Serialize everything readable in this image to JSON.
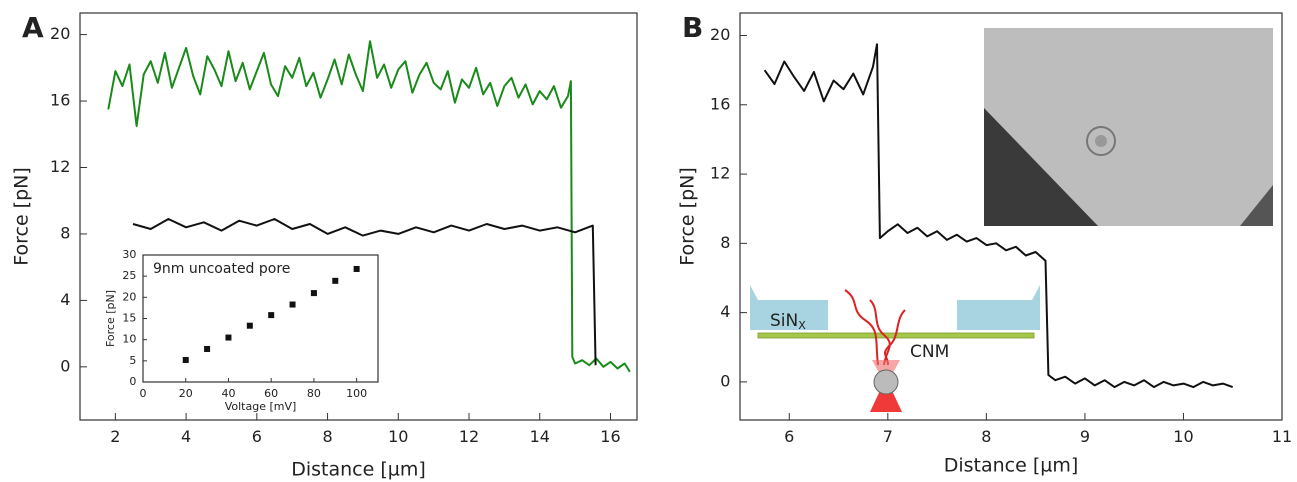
{
  "chart_data": [
    {
      "type": "line",
      "panel_label": "A",
      "x_label": "Distance [µm]",
      "y_label": "Force [pN]",
      "xlim": [
        1,
        16.75
      ],
      "ylim": [
        -3.2,
        21.3
      ],
      "xticks": [
        2,
        4,
        6,
        8,
        10,
        12,
        14,
        16
      ],
      "yticks": [
        0,
        4,
        8,
        12,
        16,
        20
      ],
      "series": [
        {
          "color": "#1a8a1a",
          "x": [
            1.8,
            2.0,
            2.2,
            2.4,
            2.6,
            2.8,
            3.0,
            3.2,
            3.4,
            3.6,
            3.8,
            4.0,
            4.2,
            4.4,
            4.6,
            4.8,
            5.0,
            5.2,
            5.4,
            5.6,
            5.8,
            6.0,
            6.2,
            6.4,
            6.6,
            6.8,
            7.0,
            7.2,
            7.4,
            7.6,
            7.8,
            8.0,
            8.2,
            8.4,
            8.6,
            8.8,
            9.0,
            9.2,
            9.4,
            9.6,
            9.8,
            10.0,
            10.2,
            10.4,
            10.6,
            10.8,
            11.0,
            11.2,
            11.4,
            11.6,
            11.8,
            12.0,
            12.2,
            12.4,
            12.6,
            12.8,
            13.0,
            13.2,
            13.4,
            13.6,
            13.8,
            14.0,
            14.2,
            14.4,
            14.6,
            14.8,
            14.88,
            14.92,
            15.0,
            15.2,
            15.4,
            15.6,
            15.8,
            16.0,
            16.2,
            16.4,
            16.55
          ],
          "values": [
            15.5,
            17.8,
            16.9,
            18.2,
            14.5,
            17.6,
            18.4,
            17.1,
            18.9,
            16.8,
            18.0,
            19.2,
            17.5,
            16.4,
            18.7,
            17.9,
            16.9,
            19.0,
            17.2,
            18.3,
            16.7,
            17.8,
            18.9,
            17.0,
            16.3,
            18.1,
            17.4,
            18.6,
            16.9,
            17.7,
            16.2,
            17.3,
            18.5,
            17.0,
            18.8,
            17.6,
            16.6,
            19.6,
            17.4,
            18.2,
            16.8,
            17.9,
            18.4,
            16.5,
            17.6,
            18.3,
            17.1,
            16.7,
            17.8,
            15.9,
            17.3,
            16.8,
            18.0,
            16.4,
            17.1,
            15.7,
            16.9,
            17.4,
            16.2,
            17.0,
            15.8,
            16.6,
            16.1,
            16.9,
            15.6,
            16.3,
            17.2,
            0.6,
            0.2,
            0.4,
            0.1,
            0.5,
            0.0,
            0.3,
            -0.1,
            0.2,
            -0.3
          ]
        },
        {
          "color": "#111111",
          "x": [
            2.5,
            3.0,
            3.5,
            4.0,
            4.5,
            5.0,
            5.5,
            6.0,
            6.5,
            7.0,
            7.5,
            8.0,
            8.5,
            9.0,
            9.5,
            10.0,
            10.5,
            11.0,
            11.5,
            12.0,
            12.5,
            13.0,
            13.5,
            14.0,
            14.5,
            15.0,
            15.5,
            15.58
          ],
          "values": [
            8.6,
            8.3,
            8.9,
            8.4,
            8.7,
            8.2,
            8.8,
            8.5,
            8.9,
            8.3,
            8.6,
            8.0,
            8.4,
            7.9,
            8.2,
            8.0,
            8.4,
            8.1,
            8.5,
            8.2,
            8.6,
            8.3,
            8.5,
            8.2,
            8.4,
            8.1,
            8.5,
            0.1
          ]
        }
      ]
    },
    {
      "type": "scatter",
      "annotation": "9nm uncoated pore",
      "x_label": "Voltage [mV]",
      "y_label": "Force [pN]",
      "xlim": [
        0,
        110
      ],
      "ylim": [
        0,
        30
      ],
      "xticks": [
        0,
        20,
        40,
        60,
        80,
        100
      ],
      "yticks": [
        0,
        5,
        10,
        15,
        20,
        25,
        30
      ],
      "color": "#111111",
      "x": [
        20,
        30,
        40,
        50,
        60,
        70,
        80,
        90,
        100
      ],
      "values": [
        5.2,
        7.8,
        10.5,
        13.3,
        15.8,
        18.3,
        21.0,
        23.9,
        26.7
      ]
    },
    {
      "type": "line",
      "panel_label": "B",
      "x_label": "Distance [µm]",
      "y_label": "Force [pN]",
      "xlim": [
        5.5,
        11
      ],
      "ylim": [
        -2.2,
        21.3
      ],
      "xticks": [
        6,
        7,
        8,
        9,
        10,
        11
      ],
      "yticks": [
        0,
        4,
        8,
        12,
        16,
        20
      ],
      "series": [
        {
          "color": "#111111",
          "x": [
            5.75,
            5.85,
            5.95,
            6.05,
            6.15,
            6.25,
            6.35,
            6.45,
            6.55,
            6.65,
            6.75,
            6.85,
            6.89,
            6.92,
            7.0,
            7.1,
            7.2,
            7.3,
            7.4,
            7.5,
            7.6,
            7.7,
            7.8,
            7.9,
            8.0,
            8.1,
            8.2,
            8.3,
            8.4,
            8.5,
            8.6,
            8.63,
            8.7,
            8.8,
            8.9,
            9.0,
            9.1,
            9.2,
            9.3,
            9.4,
            9.5,
            9.6,
            9.7,
            9.8,
            9.9,
            10.0,
            10.1,
            10.2,
            10.3,
            10.4,
            10.5
          ],
          "values": [
            18.0,
            17.2,
            18.5,
            17.6,
            16.8,
            17.9,
            16.2,
            17.4,
            16.9,
            17.8,
            16.6,
            18.2,
            19.5,
            8.3,
            8.7,
            9.1,
            8.6,
            8.9,
            8.4,
            8.7,
            8.2,
            8.5,
            8.1,
            8.3,
            7.9,
            8.0,
            7.6,
            7.8,
            7.3,
            7.5,
            7.0,
            0.4,
            0.1,
            0.3,
            -0.1,
            0.2,
            -0.2,
            0.1,
            -0.3,
            0.0,
            -0.2,
            0.1,
            -0.3,
            0.0,
            -0.2,
            -0.1,
            -0.3,
            0.0,
            -0.2,
            -0.1,
            -0.3
          ]
        }
      ]
    }
  ],
  "diagram": {
    "membrane": "SiN",
    "membrane_subscript": "X",
    "layer": "CNM"
  }
}
